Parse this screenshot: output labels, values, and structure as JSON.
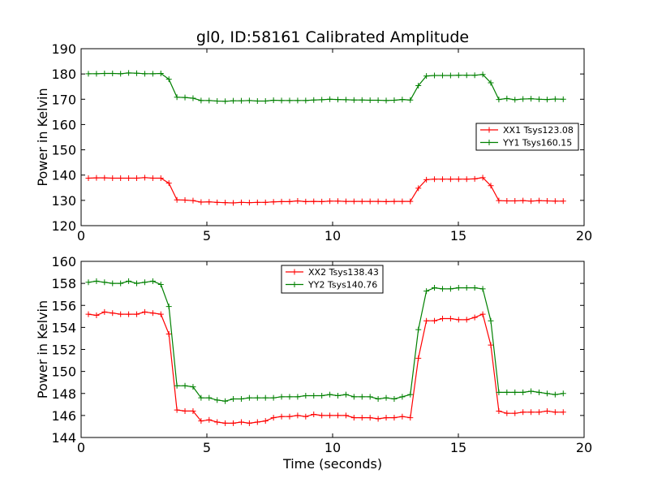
{
  "chart_data": [
    {
      "type": "line",
      "title": "gl0, ID:58161 Calibrated Amplitude",
      "xlabel": "",
      "ylabel": "Power in Kelvin",
      "xlim": [
        0,
        20
      ],
      "ylim": [
        120,
        190
      ],
      "xticks": [
        0,
        5,
        10,
        15,
        20
      ],
      "yticks": [
        120,
        130,
        140,
        150,
        160,
        170,
        180,
        190
      ],
      "legend_position": "center-right",
      "grid": false,
      "series": [
        {
          "name": "XX1 Tsys123.08",
          "color": "#ff0000",
          "x": [
            0.29,
            0.61,
            0.93,
            1.25,
            1.57,
            1.89,
            2.21,
            2.53,
            2.85,
            3.17,
            3.49,
            3.81,
            4.13,
            4.45,
            4.77,
            5.09,
            5.41,
            5.73,
            6.05,
            6.37,
            6.69,
            7.01,
            7.33,
            7.65,
            7.97,
            8.29,
            8.61,
            8.93,
            9.25,
            9.57,
            9.89,
            10.21,
            10.53,
            10.85,
            11.17,
            11.49,
            11.81,
            12.13,
            12.45,
            12.77,
            13.09,
            13.41,
            13.73,
            14.05,
            14.37,
            14.69,
            15.01,
            15.33,
            15.65,
            15.97,
            16.29,
            16.61,
            16.93,
            17.25,
            17.57,
            17.89,
            18.21,
            18.53,
            18.85,
            19.17
          ],
          "y": [
            138.8,
            138.9,
            138.9,
            138.8,
            138.8,
            138.8,
            138.8,
            139.0,
            138.8,
            138.8,
            136.8,
            130.2,
            130.1,
            129.9,
            129.3,
            129.4,
            129.2,
            129.1,
            129.0,
            129.2,
            129.1,
            129.2,
            129.2,
            129.4,
            129.5,
            129.5,
            129.8,
            129.5,
            129.6,
            129.5,
            129.7,
            129.7,
            129.6,
            129.6,
            129.6,
            129.6,
            129.6,
            129.5,
            129.6,
            129.6,
            129.6,
            134.8,
            138.2,
            138.4,
            138.4,
            138.4,
            138.4,
            138.4,
            138.5,
            139.0,
            135.8,
            129.9,
            129.8,
            129.8,
            129.9,
            129.7,
            129.9,
            129.8,
            129.7,
            129.7
          ]
        },
        {
          "name": "YY1 Tsys160.15",
          "color": "#008000",
          "x": [
            0.29,
            0.61,
            0.93,
            1.25,
            1.57,
            1.89,
            2.21,
            2.53,
            2.85,
            3.17,
            3.49,
            3.81,
            4.13,
            4.45,
            4.77,
            5.09,
            5.41,
            5.73,
            6.05,
            6.37,
            6.69,
            7.01,
            7.33,
            7.65,
            7.97,
            8.29,
            8.61,
            8.93,
            9.25,
            9.57,
            9.89,
            10.21,
            10.53,
            10.85,
            11.17,
            11.49,
            11.81,
            12.13,
            12.45,
            12.77,
            13.09,
            13.41,
            13.73,
            14.05,
            14.37,
            14.69,
            15.01,
            15.33,
            15.65,
            15.97,
            16.29,
            16.61,
            16.93,
            17.25,
            17.57,
            17.89,
            18.21,
            18.53,
            18.85,
            19.17
          ],
          "y": [
            180.1,
            180.1,
            180.2,
            180.2,
            180.1,
            180.4,
            180.3,
            180.1,
            180.1,
            180.2,
            177.9,
            170.8,
            170.7,
            170.4,
            169.5,
            169.5,
            169.3,
            169.2,
            169.4,
            169.4,
            169.5,
            169.3,
            169.3,
            169.6,
            169.5,
            169.5,
            169.5,
            169.5,
            169.7,
            169.8,
            170.0,
            169.9,
            169.8,
            169.7,
            169.7,
            169.6,
            169.6,
            169.5,
            169.6,
            169.9,
            169.7,
            175.4,
            179.2,
            179.4,
            179.4,
            179.4,
            179.5,
            179.5,
            179.5,
            179.8,
            176.5,
            169.9,
            170.3,
            169.8,
            170.1,
            170.2,
            170.0,
            169.9,
            170.1,
            170.0
          ]
        }
      ]
    },
    {
      "type": "line",
      "title": "",
      "xlabel": "Time (seconds)",
      "ylabel": "Power in Kelvin",
      "xlim": [
        0,
        20
      ],
      "ylim": [
        144,
        160
      ],
      "xticks": [
        0,
        5,
        10,
        15,
        20
      ],
      "yticks": [
        144,
        146,
        148,
        150,
        152,
        154,
        156,
        158,
        160
      ],
      "legend_position": "upper-center",
      "grid": false,
      "series": [
        {
          "name": "XX2 Tsys138.43",
          "color": "#ff0000",
          "x": [
            0.29,
            0.61,
            0.93,
            1.25,
            1.57,
            1.89,
            2.21,
            2.53,
            2.85,
            3.17,
            3.49,
            3.81,
            4.13,
            4.45,
            4.77,
            5.09,
            5.41,
            5.73,
            6.05,
            6.37,
            6.69,
            7.01,
            7.33,
            7.65,
            7.97,
            8.29,
            8.61,
            8.93,
            9.25,
            9.57,
            9.89,
            10.21,
            10.53,
            10.85,
            11.17,
            11.49,
            11.81,
            12.13,
            12.45,
            12.77,
            13.09,
            13.41,
            13.73,
            14.05,
            14.37,
            14.69,
            15.01,
            15.33,
            15.65,
            15.97,
            16.29,
            16.61,
            16.93,
            17.25,
            17.57,
            17.89,
            18.21,
            18.53,
            18.85,
            19.17
          ],
          "y": [
            155.2,
            155.1,
            155.4,
            155.3,
            155.2,
            155.2,
            155.2,
            155.4,
            155.3,
            155.2,
            153.4,
            146.5,
            146.4,
            146.4,
            145.5,
            145.6,
            145.4,
            145.3,
            145.3,
            145.4,
            145.3,
            145.4,
            145.5,
            145.8,
            145.9,
            145.9,
            146.0,
            145.9,
            146.1,
            146.0,
            146.0,
            146.0,
            146.0,
            145.8,
            145.8,
            145.8,
            145.7,
            145.8,
            145.8,
            145.9,
            145.8,
            151.2,
            154.6,
            154.6,
            154.8,
            154.8,
            154.7,
            154.7,
            154.9,
            155.2,
            152.4,
            146.4,
            146.2,
            146.2,
            146.3,
            146.3,
            146.3,
            146.4,
            146.3,
            146.3
          ]
        },
        {
          "name": "YY2 Tsys140.76",
          "color": "#008000",
          "x": [
            0.29,
            0.61,
            0.93,
            1.25,
            1.57,
            1.89,
            2.21,
            2.53,
            2.85,
            3.17,
            3.49,
            3.81,
            4.13,
            4.45,
            4.77,
            5.09,
            5.41,
            5.73,
            6.05,
            6.37,
            6.69,
            7.01,
            7.33,
            7.65,
            7.97,
            8.29,
            8.61,
            8.93,
            9.25,
            9.57,
            9.89,
            10.21,
            10.53,
            10.85,
            11.17,
            11.49,
            11.81,
            12.13,
            12.45,
            12.77,
            13.09,
            13.41,
            13.73,
            14.05,
            14.37,
            14.69,
            15.01,
            15.33,
            15.65,
            15.97,
            16.29,
            16.61,
            16.93,
            17.25,
            17.57,
            17.89,
            18.21,
            18.53,
            18.85,
            19.17
          ],
          "y": [
            158.1,
            158.2,
            158.1,
            158.0,
            158.0,
            158.2,
            158.0,
            158.1,
            158.2,
            157.9,
            155.9,
            148.7,
            148.7,
            148.6,
            147.6,
            147.6,
            147.4,
            147.3,
            147.5,
            147.5,
            147.6,
            147.6,
            147.6,
            147.6,
            147.7,
            147.7,
            147.7,
            147.8,
            147.8,
            147.8,
            147.9,
            147.8,
            147.9,
            147.7,
            147.7,
            147.7,
            147.5,
            147.6,
            147.5,
            147.7,
            147.9,
            153.8,
            157.3,
            157.6,
            157.5,
            157.5,
            157.6,
            157.6,
            157.6,
            157.5,
            154.6,
            148.1,
            148.1,
            148.1,
            148.1,
            148.2,
            148.1,
            148.0,
            147.9,
            148.0
          ]
        }
      ]
    }
  ]
}
